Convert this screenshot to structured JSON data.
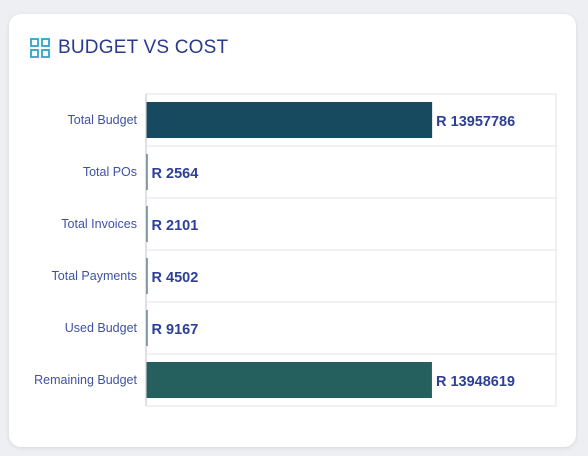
{
  "header": {
    "title": "BUDGET VS COST",
    "icon": "grid-icon"
  },
  "colors": {
    "title": "#2a3a8c",
    "icon": "#2fa3c9",
    "label": "#3f51a6",
    "value": "#2d3f97",
    "grid": "#e1e3e8"
  },
  "chart_data": {
    "type": "bar",
    "orientation": "horizontal",
    "title": "BUDGET VS COST",
    "categories": [
      "Total Budget",
      "Total POs",
      "Total Invoices",
      "Total Payments",
      "Used Budget",
      "Remaining Budget"
    ],
    "values": [
      13957786,
      2564,
      2101,
      4502,
      9167,
      13948619
    ],
    "value_labels": [
      "R 13957786",
      "R 2564",
      "R 2101",
      "R 4502",
      "R 9167",
      "R 13948619"
    ],
    "bar_colors": [
      "#174a5e",
      "#1a4d61",
      "#1a4d61",
      "#1a4d61",
      "#1a4d61",
      "#25605f"
    ],
    "xlim": [
      0,
      20000000
    ],
    "grid": true,
    "legend": "none"
  }
}
